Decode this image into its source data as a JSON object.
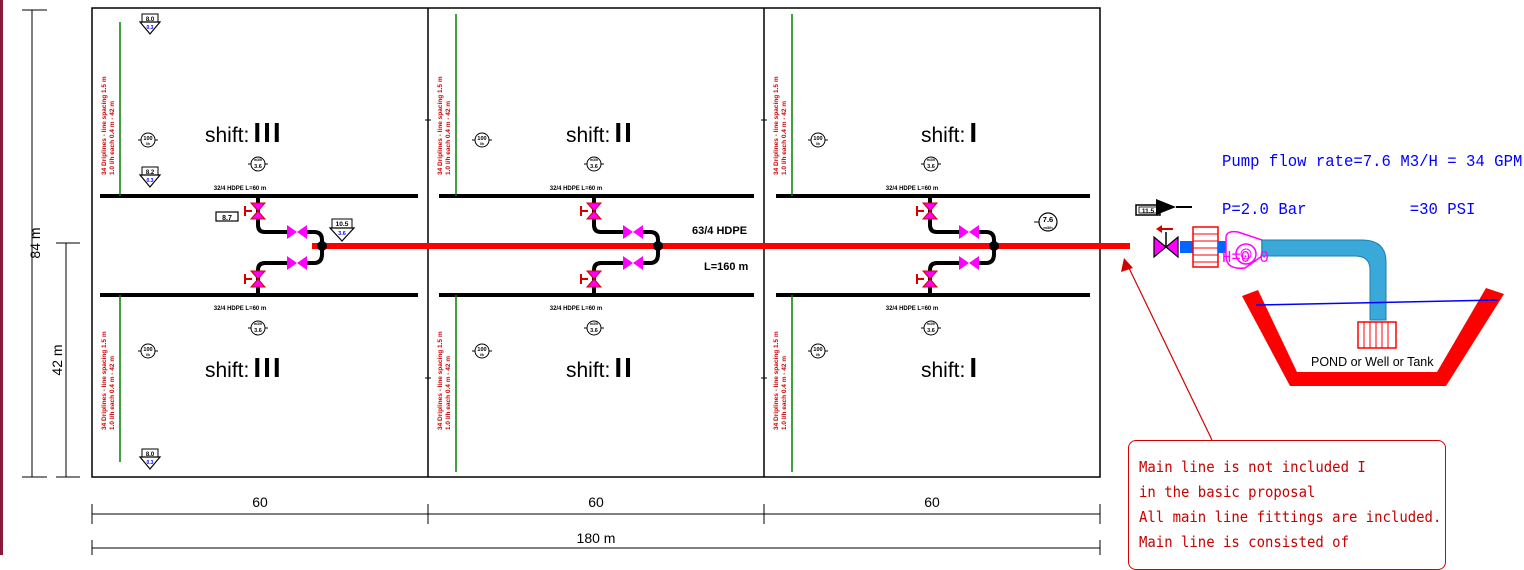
{
  "dimensions": {
    "total_height": "84 m",
    "half_height": "42 m",
    "block_width": "60",
    "total_width": "180 m"
  },
  "blocks": [
    {
      "shift_label": "shift:",
      "shift_numeral": "III"
    },
    {
      "shift_label": "shift:",
      "shift_numeral": "II"
    },
    {
      "shift_label": "shift:",
      "shift_numeral": "I"
    }
  ],
  "labels": {
    "lateral_pipe": "32/4 HDPE L=60 m",
    "dripline_line1": "34 Driplines - line spacing 1.5 m",
    "dripline_line2": "1.0 l/h each 0.4 m - 42 m",
    "flow_badge": "100",
    "flow_badge_unit": "l/h",
    "submain_flow": "3.6",
    "submain_flow_unit": "m3/h",
    "tag_top_main": "8.0",
    "tag_top_sub": "0.3",
    "tag_mid_main": "8.2",
    "tag_mid_sub": "0.3",
    "tag_bottom_main": "8.0",
    "tag_bottom_sub": "0.3",
    "valve_tag": "8.7",
    "main_tag_main": "10.5",
    "main_tag_sub": "3.6",
    "main_pipe": "63/4 HDPE",
    "main_length": "L=160 m",
    "main_flow": "7.6",
    "main_flow_unit": "m3/h",
    "pump_tag": "11.5",
    "pond": "POND or Well or Tank"
  },
  "pump_info": {
    "line1": "Pump flow rate=7.6 M3/H = 34 GPM",
    "line2": "P=2.0 Bar           =30 PSI",
    "line3": "H=0.0"
  },
  "note": {
    "lines": [
      "Main line is not included I",
      "in the basic proposal",
      "All main line fittings are included.",
      "Main line is consisted of"
    ]
  },
  "colors": {
    "main_line": "#ff0000",
    "valve": "#ff00ff",
    "dripline": "#008000",
    "lateral": "#000000",
    "pump_text": "#0000ff",
    "note": "#c80000",
    "frame_edge": "#8b1a3a"
  }
}
